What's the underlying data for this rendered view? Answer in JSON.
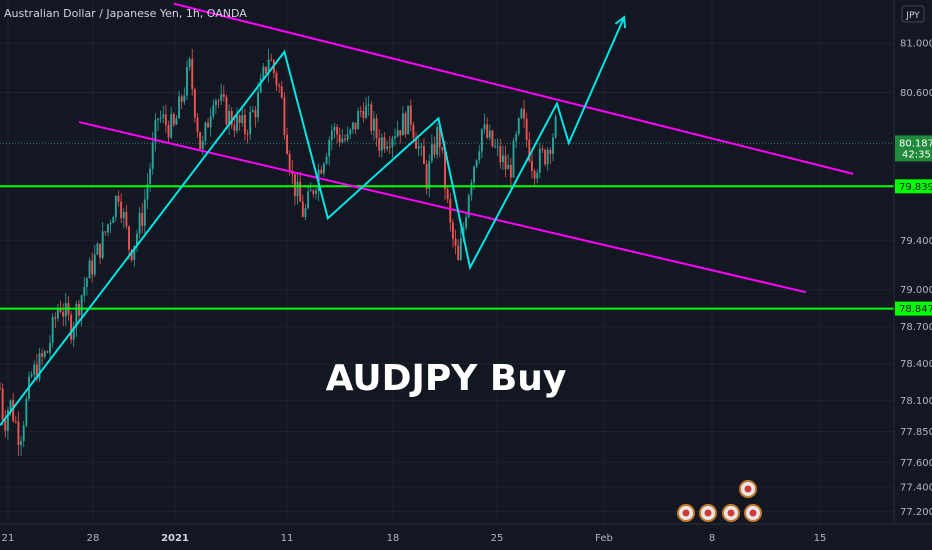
{
  "header": {
    "title": "Australian Dollar / Japanese Yen, 1h, OANDA",
    "currency_button": "JPY"
  },
  "annotation": "AUDJPY Buy",
  "colors": {
    "background": "#131722",
    "candle_up": "#26a69a",
    "candle_down": "#ef5350",
    "support_line": "#00ff00",
    "channel": "#ff00ff",
    "zigzag": "#00e5e5",
    "price_tag": "#1e8a3a"
  },
  "chart_data": {
    "type": "candlestick",
    "symbol": "AUDJPY",
    "timeframe": "1h",
    "ylim": [
      77.1,
      81.35
    ],
    "y_ticks": [
      "81.000",
      "80.600",
      "80.200",
      "79.400",
      "79.000",
      "78.700",
      "78.400",
      "78.100",
      "77.850",
      "77.600",
      "77.400",
      "77.200"
    ],
    "x_ticks": [
      {
        "label": "21",
        "bold": false
      },
      {
        "label": "28",
        "bold": false
      },
      {
        "label": "2021",
        "bold": true
      },
      {
        "label": "11",
        "bold": false
      },
      {
        "label": "18",
        "bold": false
      },
      {
        "label": "25",
        "bold": false
      },
      {
        "label": "Feb",
        "bold": false
      },
      {
        "label": "8",
        "bold": false
      },
      {
        "label": "15",
        "bold": false
      }
    ],
    "current_price": "80.187",
    "countdown": "42:35",
    "horizontal_levels": [
      {
        "price": 79.839,
        "label": "79.839"
      },
      {
        "price": 78.847,
        "label": "78.847"
      }
    ],
    "price_path": [
      [
        0,
        78.2
      ],
      [
        0.5,
        77.9
      ],
      [
        1.2,
        78.1
      ],
      [
        2.5,
        77.8
      ],
      [
        4,
        78.3
      ],
      [
        6,
        78.5
      ],
      [
        7.5,
        78.9
      ],
      [
        9,
        78.7
      ],
      [
        11,
        79.1
      ],
      [
        13,
        79.4
      ],
      [
        15,
        79.8
      ],
      [
        16.5,
        79.3
      ],
      [
        18,
        79.6
      ],
      [
        20,
        80.4
      ],
      [
        22,
        80.3
      ],
      [
        24,
        80.8
      ],
      [
        25.5,
        80.1
      ],
      [
        27,
        80.6
      ],
      [
        29,
        80.4
      ],
      [
        31,
        80.3
      ],
      [
        32.5,
        80.5
      ],
      [
        34,
        80.9
      ],
      [
        35.5,
        80.6
      ],
      [
        37,
        79.9
      ],
      [
        38.5,
        79.6
      ],
      [
        40,
        79.9
      ],
      [
        42,
        80.3
      ],
      [
        44,
        80.2
      ],
      [
        46,
        80.5
      ],
      [
        48,
        80.2
      ],
      [
        50,
        80.3
      ],
      [
        52,
        80.4
      ],
      [
        54,
        79.9
      ],
      [
        55.5,
        80.3
      ],
      [
        57,
        79.5
      ],
      [
        58,
        79.2
      ],
      [
        59.5,
        79.9
      ],
      [
        61,
        80.3
      ],
      [
        63,
        80.1
      ],
      [
        64.5,
        79.95
      ],
      [
        66,
        80.4
      ],
      [
        67.5,
        80.0
      ],
      [
        69,
        80.1
      ],
      [
        70.5,
        80.35
      ]
    ],
    "channel_upper": [
      [
        22,
        81.32
      ],
      [
        108,
        79.94
      ]
    ],
    "channel_lower": [
      [
        10,
        80.36
      ],
      [
        102,
        78.98
      ]
    ],
    "zigzag": [
      [
        0,
        77.9
      ],
      [
        36,
        80.93
      ],
      [
        41.5,
        79.58
      ],
      [
        55.5,
        80.39
      ],
      [
        59.5,
        79.18
      ],
      [
        70.5,
        80.51
      ],
      [
        72,
        80.19
      ],
      [
        79,
        81.21
      ]
    ]
  },
  "event_icons": [
    "earnings-icon",
    "dividend-icon",
    "split-icon",
    "news-icon",
    "flag-icon"
  ]
}
